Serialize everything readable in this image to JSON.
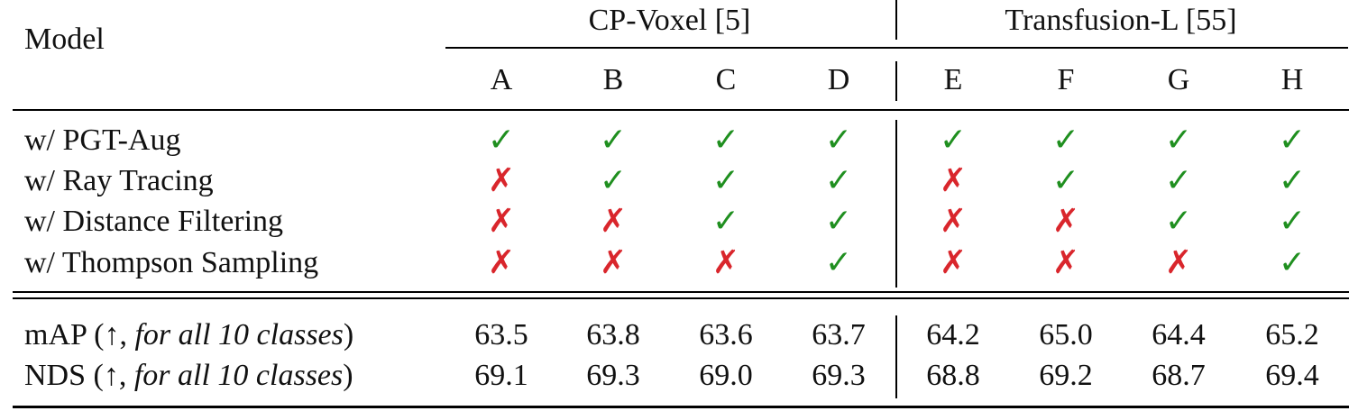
{
  "table": {
    "model_header": "Model",
    "groups": [
      {
        "name": "CP-Voxel [5]",
        "columns": [
          "A",
          "B",
          "C",
          "D"
        ]
      },
      {
        "name": "Transfusion-L [55]",
        "columns": [
          "E",
          "F",
          "G",
          "H"
        ]
      }
    ],
    "feature_rows": [
      {
        "label": "w/ PGT-Aug",
        "values": [
          true,
          true,
          true,
          true,
          true,
          true,
          true,
          true
        ]
      },
      {
        "label": "w/ Ray Tracing",
        "values": [
          false,
          true,
          true,
          true,
          false,
          true,
          true,
          true
        ]
      },
      {
        "label": "w/ Distance Filtering",
        "values": [
          false,
          false,
          true,
          true,
          false,
          false,
          true,
          true
        ]
      },
      {
        "label": "w/ Thompson Sampling",
        "values": [
          false,
          false,
          false,
          true,
          false,
          false,
          false,
          true
        ]
      }
    ],
    "metric_rows": [
      {
        "name": "mAP",
        "qualifier": "(↑, ",
        "italic": "for all 10 classes",
        "close": ")",
        "values": [
          "63.5",
          "63.8",
          "63.6",
          "63.7",
          "64.2",
          "65.0",
          "64.4",
          "65.2"
        ]
      },
      {
        "name": "NDS",
        "qualifier": "(↑, ",
        "italic": "for all 10 classes",
        "close": ")",
        "values": [
          "69.1",
          "69.3",
          "69.0",
          "69.3",
          "68.8",
          "69.2",
          "68.7",
          "69.4"
        ]
      }
    ],
    "check_symbol": "✓",
    "cross_symbol": "✗",
    "check_color": "#1f8f1f",
    "cross_color": "#d9262c"
  }
}
